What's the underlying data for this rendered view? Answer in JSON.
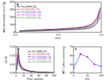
{
  "chart_data": [
    {
      "type": "line",
      "annotations": [
        "a"
      ],
      "x_label": "P/P₀",
      "y_label": "Adsorbed volume/(cm³/g)",
      "x": [
        0.05,
        0.1,
        0.2,
        0.3,
        0.4,
        0.5,
        0.6,
        0.7,
        0.8,
        0.85,
        0.9,
        0.95,
        0.99
      ],
      "series": [
        {
          "name": "TiO₂@HS-CN₁",
          "color": "#000000",
          "values": [
            20,
            25,
            30,
            35,
            40,
            45,
            52,
            60,
            75,
            90,
            120,
            190,
            330
          ]
        },
        {
          "name": "TiO₂@5%Rh-CN₁",
          "color": "#e41a1c",
          "values": [
            18,
            22,
            27,
            31,
            35,
            40,
            46,
            53,
            66,
            80,
            105,
            170,
            300
          ]
        },
        {
          "name": "TiO₂@10%Rh-CN₁",
          "color": "#1f3fd6",
          "values": [
            15,
            19,
            23,
            27,
            31,
            35,
            40,
            46,
            57,
            68,
            90,
            150,
            270
          ]
        },
        {
          "name": "TiO₂@15%Rh-CN₁",
          "color": "#d61fd6",
          "values": [
            12,
            15,
            19,
            22,
            25,
            29,
            33,
            38,
            47,
            56,
            75,
            125,
            230
          ]
        },
        {
          "name": "TiO₂@20%Rh-CN₁",
          "color": "#1a9e1a",
          "values": [
            10,
            13,
            16,
            19,
            22,
            25,
            29,
            33,
            41,
            49,
            65,
            110,
            200
          ]
        }
      ],
      "xlim": [
        0,
        1
      ],
      "xticks": [
        {
          "value": 0,
          "label": "0.0"
        },
        {
          "value": 0.5,
          "label": "0.5"
        },
        {
          "value": 1,
          "label": "1.0"
        }
      ],
      "ylim": [
        0,
        400
      ],
      "yticks": [
        0,
        100,
        200,
        300,
        400
      ],
      "legend": "upper-left"
    },
    {
      "type": "line",
      "annotations": [
        "b"
      ],
      "x_label": "Pore size/nm",
      "y_label": "dV/dD",
      "x": [
        2,
        4,
        6,
        8,
        10,
        15,
        20,
        30,
        40,
        60,
        80,
        100
      ],
      "series": [
        {
          "name": "TiO₂@HS-CN₁",
          "color": "#000000",
          "values": [
            0.005,
            0.02,
            0.026,
            0.018,
            0.012,
            0.007,
            0.005,
            0.003,
            0.002,
            0.001,
            0.0008,
            0.0005
          ]
        },
        {
          "name": "TiO₂@5%Rh-CN₁",
          "color": "#e41a1c",
          "values": [
            0.004,
            0.017,
            0.023,
            0.016,
            0.011,
            0.006,
            0.0045,
            0.0028,
            0.0018,
            0.001,
            0.0007,
            0.0005
          ]
        },
        {
          "name": "TiO₂@10%Rh-CN₁",
          "color": "#1f3fd6",
          "values": [
            0.004,
            0.015,
            0.02,
            0.014,
            0.01,
            0.0055,
            0.004,
            0.0025,
            0.0016,
            0.0009,
            0.0006,
            0.0004
          ]
        },
        {
          "name": "TiO₂@15%Rh-CN₁",
          "color": "#d61fd6",
          "values": [
            0.003,
            0.012,
            0.017,
            0.012,
            0.008,
            0.005,
            0.0035,
            0.0022,
            0.0014,
            0.0008,
            0.0005,
            0.0004
          ]
        },
        {
          "name": "TiO₂@20%Rh-CN₁",
          "color": "#1a9e1a",
          "values": [
            0.003,
            0.01,
            0.014,
            0.01,
            0.007,
            0.004,
            0.003,
            0.002,
            0.0012,
            0.0007,
            0.0005,
            0.0003
          ]
        }
      ],
      "xlim": [
        0,
        100
      ],
      "xticks": [
        0,
        20,
        40,
        60,
        80,
        100
      ],
      "ylim": [
        0,
        0.03
      ],
      "yticks": [
        {
          "value": 0,
          "label": "0.00"
        },
        {
          "value": 0.01,
          "label": "0.01"
        },
        {
          "value": 0.02,
          "label": "0.02"
        },
        {
          "value": 0.03,
          "label": "0.03"
        }
      ],
      "legend": "upper-right"
    },
    {
      "type": "line",
      "annotations": [
        "c"
      ],
      "x_label": "θ%",
      "y_label": "BET surface area/(m²/g)",
      "x": [
        0,
        25,
        50,
        75,
        100
      ],
      "series": [
        {
          "name": "BET",
          "color": "#1f3fd6",
          "marker": "circle",
          "values": [
            45.2,
            61.8,
            58.3,
            50.1,
            47.6
          ]
        }
      ],
      "xlim": [
        0,
        100
      ],
      "xticks": [
        0,
        50,
        100
      ],
      "ylim": [
        40,
        70
      ],
      "yticks": [
        40,
        50,
        60,
        70
      ]
    }
  ]
}
